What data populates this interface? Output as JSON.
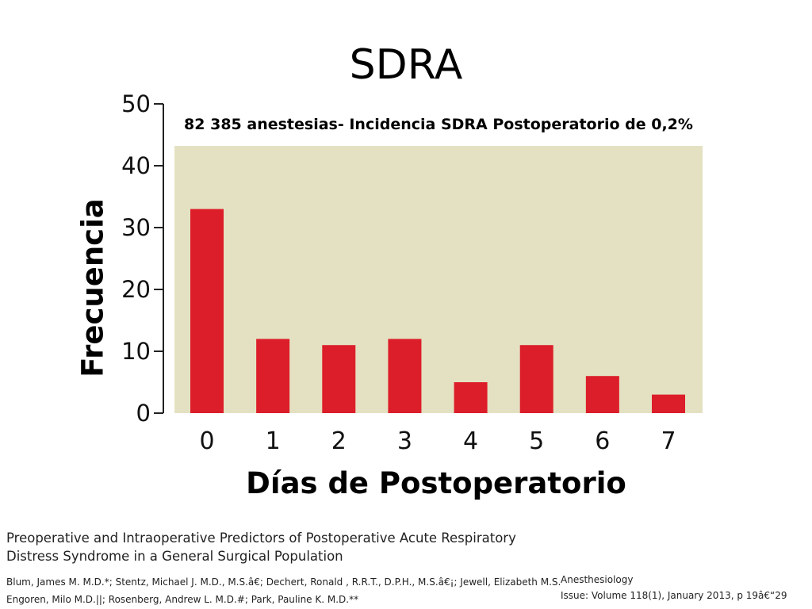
{
  "slide": {
    "title": "SDRA"
  },
  "reference": {
    "article_title": "Preoperative and Intraoperative Predictors of Postoperative Acute Respiratory Distress Syndrome in a General Surgical Population",
    "authors_line1": "Blum, James M. M.D.*; Stentz, Michael J. M.D., M.S.â€; Dechert, Ronald , R.R.T., D.P.H., M.S.â€¡; Jewell, Elizabeth M.S.",
    "authors_line2": "Engoren, Milo M.D.||; Rosenberg, Andrew L. M.D.#; Park, Pauline K. M.D.**",
    "journal": "Anesthesiology",
    "issue": "Issue: Volume 118(1), January 2013, p 19â€“29"
  },
  "chart_data": {
    "type": "bar",
    "title": "",
    "subtitle": "82 385 anestesias- Incidencia SDRA Postoperatorio de 0,2%",
    "xlabel": "Días de Postoperatorio",
    "ylabel": "Frecuencia",
    "categories": [
      "0",
      "1",
      "2",
      "3",
      "4",
      "5",
      "6",
      "7"
    ],
    "values": [
      33,
      12,
      11,
      12,
      5,
      11,
      6,
      3
    ],
    "yticks": [
      "0",
      "10",
      "20",
      "30",
      "40",
      "50"
    ],
    "ylim": [
      0,
      50
    ],
    "grid": false,
    "legend": "none",
    "colors": {
      "bar": "#dc1e2a",
      "plot_background": "#e4e1c2",
      "axis": "#222222"
    }
  }
}
